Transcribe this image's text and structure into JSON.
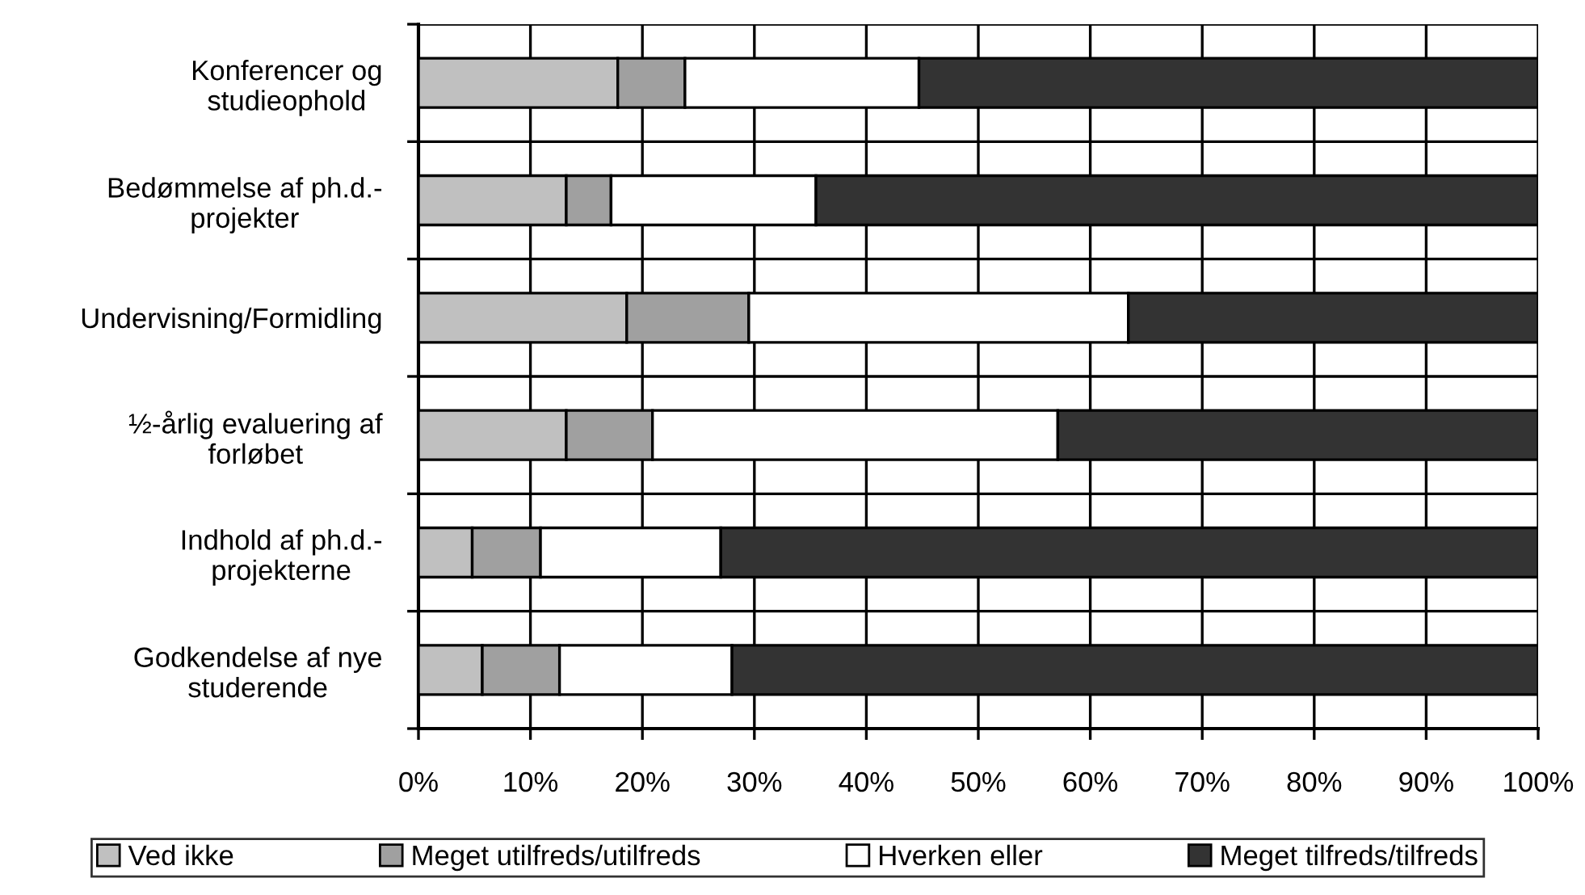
{
  "chart_data": {
    "type": "bar",
    "orientation": "horizontal",
    "stacked": true,
    "categories": [
      "Konferencer og\nstudieophold",
      "Bedømmelse af ph.d.-\nprojekter",
      "Undervisning/Formidling",
      "½-årlig evaluering af\nforløbet",
      "Indhold af ph.d.-\nprojekterne",
      "Godkendelse af nye\nstuderende"
    ],
    "series": [
      {
        "name": "Ved ikke",
        "color": "#c0c0c0",
        "values": [
          17.8,
          13.2,
          18.6,
          13.2,
          4.8,
          5.7
        ]
      },
      {
        "name": "Meget utilfreds/utilfreds",
        "color": "#a0a0a0",
        "values": [
          6.0,
          4.0,
          10.9,
          7.7,
          6.1,
          6.9
        ]
      },
      {
        "name": "Hverken eller",
        "color": "#ffffff",
        "values": [
          20.9,
          18.3,
          33.9,
          36.2,
          16.1,
          15.4
        ]
      },
      {
        "name": "Meget tilfreds/tilfreds",
        "color": "#333333",
        "values": [
          55.3,
          64.5,
          36.6,
          42.9,
          73.0,
          72.0
        ]
      }
    ],
    "xlim": [
      0,
      100
    ],
    "xticks": [
      {
        "value": 0,
        "label": "0%"
      },
      {
        "value": 10,
        "label": "10%"
      },
      {
        "value": 20,
        "label": "20%"
      },
      {
        "value": 30,
        "label": "30%"
      },
      {
        "value": 40,
        "label": "40%"
      },
      {
        "value": 50,
        "label": "50%"
      },
      {
        "value": 60,
        "label": "60%"
      },
      {
        "value": 70,
        "label": "70%"
      },
      {
        "value": 80,
        "label": "80%"
      },
      {
        "value": 90,
        "label": "90%"
      },
      {
        "value": 100,
        "label": "100%"
      }
    ],
    "grid": true,
    "legend": "bottom"
  }
}
